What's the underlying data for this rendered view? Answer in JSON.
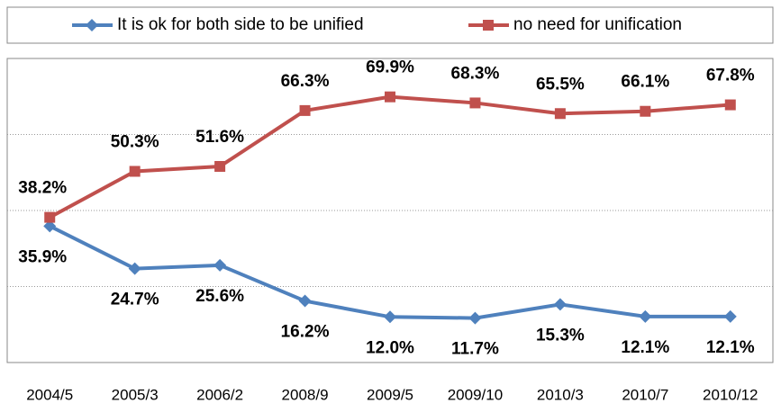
{
  "chart_data": {
    "type": "line",
    "categories": [
      "2004/5",
      "2005/3",
      "2006/2",
      "2008/9",
      "2009/5",
      "2009/10",
      "2010/3",
      "2010/7",
      "2010/12"
    ],
    "series": [
      {
        "name": "It is ok for both side to be unified",
        "color": "#4f81bd",
        "marker": "diamond",
        "values": [
          35.9,
          24.7,
          25.6,
          16.2,
          12.0,
          11.7,
          15.3,
          12.1,
          12.1
        ],
        "value_labels": [
          "35.9%",
          "24.7%",
          "25.6%",
          "16.2%",
          "12.0%",
          "11.7%",
          "15.3%",
          "12.1%",
          "12.1%"
        ]
      },
      {
        "name": "no need for unification",
        "color": "#c0504d",
        "marker": "square",
        "values": [
          38.2,
          50.3,
          51.6,
          66.3,
          69.9,
          68.3,
          65.5,
          66.1,
          67.8
        ],
        "value_labels": [
          "38.2%",
          "50.3%",
          "51.6%",
          "66.3%",
          "69.9%",
          "68.3%",
          "65.5%",
          "66.1%",
          "67.8%"
        ]
      }
    ],
    "ylim": [
      0,
      80
    ],
    "gridlines": [
      20,
      40,
      60
    ],
    "legend": "top"
  }
}
